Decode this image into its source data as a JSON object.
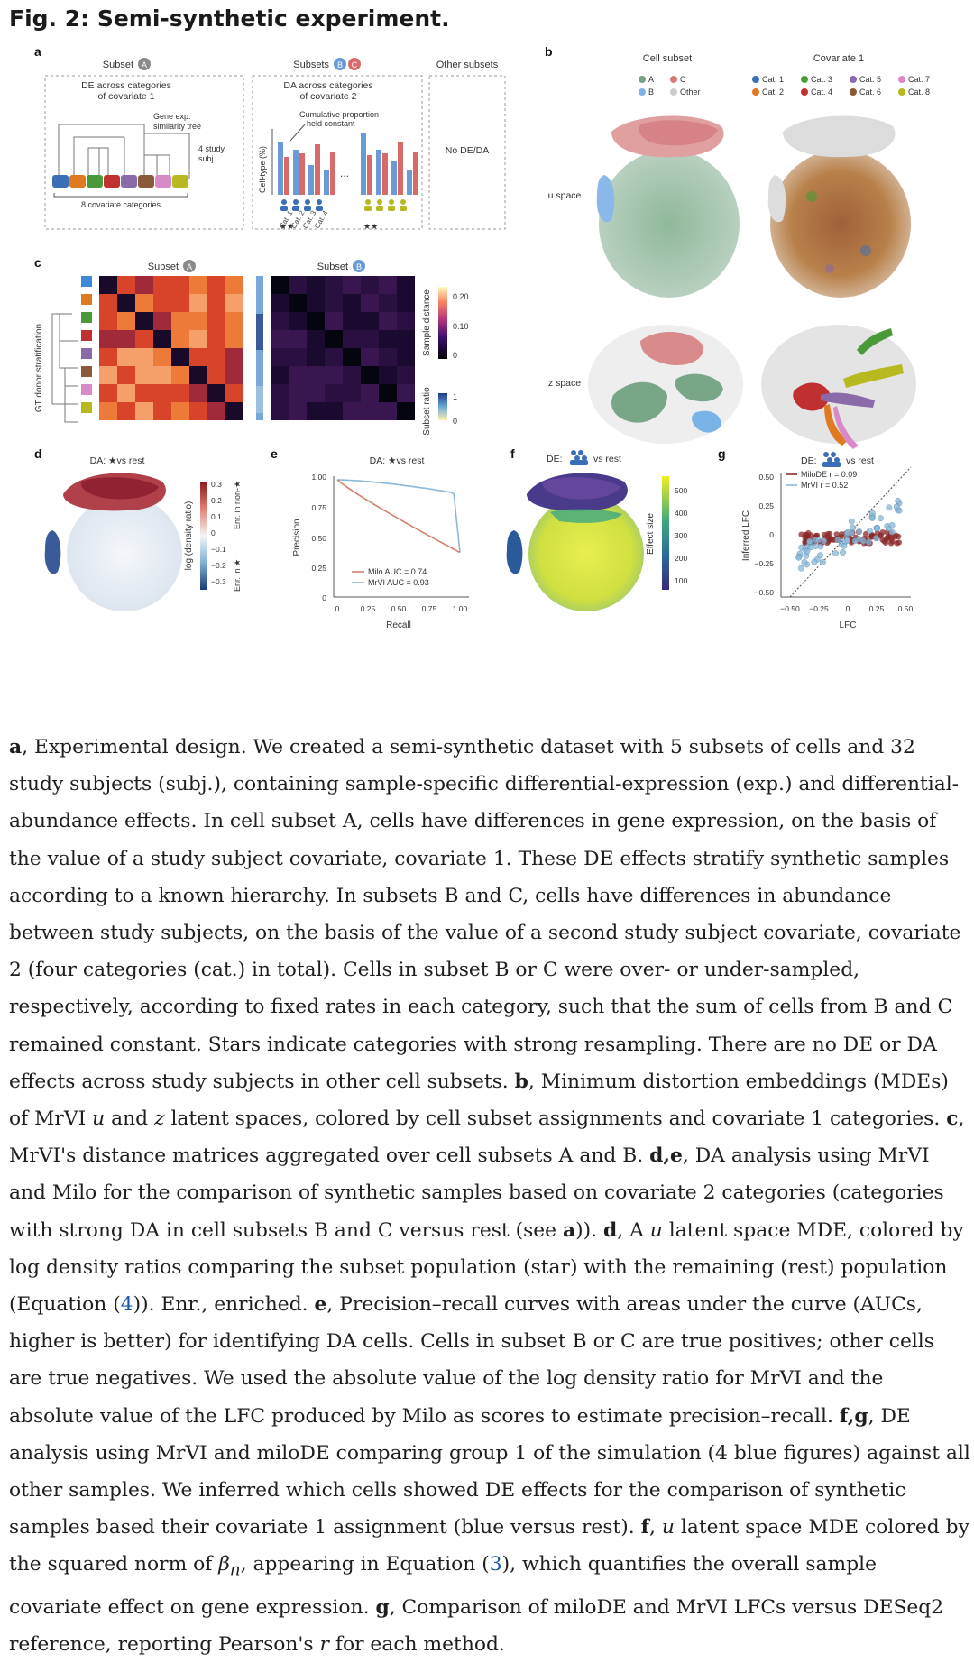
{
  "title": "Fig. 2: Semi-synthetic experiment.",
  "panel_a": {
    "letter": "a",
    "subset_a_label": "Subset",
    "subset_a_badge": "A",
    "de_title_1": "DE across categories",
    "de_title_2": "of covariate 1",
    "tree_label_1": "Gene exp.",
    "tree_label_2": "similarity tree",
    "study_label_1": "4 study",
    "study_label_2": "subj.",
    "covariate_label": "8 covariate categories",
    "subsets_bc_label": "Subsets",
    "badge_b": "B",
    "badge_c": "C",
    "da_title_1": "DA across categories",
    "da_title_2": "of covariate 2",
    "cumulative_1": "Cumulative proportion",
    "cumulative_2": "held constant",
    "ylabel": "Cell-type (%)",
    "ellipsis": "...",
    "cat_labels": [
      "Cat. 1",
      "Cat. 2",
      "Cat. 3",
      "Cat. 4"
    ],
    "stars": "★★",
    "other_subsets": "Other subsets",
    "no_de_da": "No DE/DA"
  },
  "panel_b": {
    "letter": "b",
    "cell_subset_title": "Cell subset",
    "covariate_title": "Covariate 1",
    "legend_subset": [
      {
        "label": "A",
        "color": "#7a9e87"
      },
      {
        "label": "C",
        "color": "#d9777a"
      },
      {
        "label": "B",
        "color": "#7ab3e8"
      },
      {
        "label": "Other",
        "color": "#cccccc"
      }
    ],
    "legend_cov": [
      {
        "label": "Cat. 1",
        "color": "#3a6fb8"
      },
      {
        "label": "Cat. 3",
        "color": "#4a9a3a"
      },
      {
        "label": "Cat. 5",
        "color": "#8a6aa8"
      },
      {
        "label": "Cat. 7",
        "color": "#d88ac8"
      },
      {
        "label": "Cat. 2",
        "color": "#e07a20"
      },
      {
        "label": "Cat. 4",
        "color": "#c03030"
      },
      {
        "label": "Cat. 6",
        "color": "#8a5a3a"
      },
      {
        "label": "Cat. 8",
        "color": "#b8b820"
      }
    ],
    "u_space": "u space",
    "z_space": "z space"
  },
  "panel_c": {
    "letter": "c",
    "subset_label": "Subset",
    "badge_a": "A",
    "badge_b": "B",
    "ylabel": "GT donor stratification",
    "cbar_title": "Sample distance",
    "cbar_ticks": [
      "0.20",
      "0.10",
      "0"
    ],
    "ratio_title": "Subset ratio",
    "ratio_ticks": [
      "1",
      "0"
    ]
  },
  "panel_d": {
    "letter": "d",
    "title": "DA: ★vs rest",
    "cbar_label": "log (density ratio)",
    "cbar_ticks": [
      "0.3",
      "0.2",
      "0.1",
      "0",
      "−0.1",
      "−0.2",
      "−0.3"
    ],
    "enr_top": "Enr. in non-★",
    "enr_bottom": "Enr. in ★"
  },
  "panel_e": {
    "letter": "e",
    "title": "DA: ★vs rest",
    "xlabel": "Recall",
    "ylabel": "Precision",
    "xticks": [
      "0",
      "0.25",
      "0.50",
      "0.75",
      "1.00"
    ],
    "yticks": [
      "1.00",
      "0.75",
      "0.50",
      "0.25",
      "0"
    ],
    "legend": [
      {
        "label": "Milo AUC = 0.74",
        "color": "#d0826e"
      },
      {
        "label": "MrVI AUC = 0.93",
        "color": "#8ab8d8"
      }
    ]
  },
  "panel_f": {
    "letter": "f",
    "title_prefix": "DE:",
    "title_suffix": "vs rest",
    "cbar_label": "Effect size",
    "cbar_ticks": [
      "500",
      "400",
      "300",
      "200",
      "100"
    ]
  },
  "panel_g": {
    "letter": "g",
    "title_prefix": "DE:",
    "title_suffix": "vs rest",
    "xlabel": "LFC",
    "ylabel": "Inferred LFC",
    "xticks": [
      "−0.50",
      "−0.25",
      "0",
      "0.25",
      "0.50"
    ],
    "yticks": [
      "0.50",
      "0.25",
      "0",
      "−0.25",
      "−0.50"
    ],
    "legend": [
      {
        "label": "MiloDE r = 0.09",
        "color": "#8b2a2a"
      },
      {
        "label": "MrVI r = 0.52",
        "color": "#8ab8d8"
      }
    ]
  },
  "caption": {
    "p_a1": "a",
    "t_a1": ", Experimental design. We created a semi-synthetic dataset with 5 subsets of cells and 32 study subjects (subj.), containing sample-specific differential-expression (exp.) and differential-abundance effects. In cell subset A, cells have differences in gene expression, on the basis of the value of a study subject covariate, covariate 1. These DE effects stratify synthetic samples according to a known hierarchy. In subsets B and C, cells have differences in abundance between study subjects, on the basis of the value of a second study subject covariate, covariate 2 (four categories (cat.) in total). Cells in subset B or C were over- or under-sampled, respectively, according to fixed rates in each category, such that the sum of cells from B and C remained constant. Stars indicate categories with strong resampling. There are no DE or DA effects across study subjects in other cell subsets. ",
    "p_b": "b",
    "t_b1": ", Minimum distortion embeddings (MDEs) of MrVI ",
    "t_b_u": "u",
    "t_b2": " and ",
    "t_b_z": "z",
    "t_b3": " latent spaces, colored by cell subset assignments and covariate 1 categories. ",
    "p_c": "c",
    "t_c": ", MrVI's distance matrices aggregated over cell subsets A and B. ",
    "p_de": "d,e",
    "t_de1": ", DA analysis using MrVI and Milo for the comparison of synthetic samples based on covariate 2 categories (categories with strong DA in cell subsets B and C versus rest (see ",
    "p_a2": "a",
    "t_de2": ")). ",
    "p_d": "d",
    "t_d1": ", A ",
    "t_d_u": "u",
    "t_d2": " latent space MDE, colored by log density ratios comparing the subset population (star) with the remaining (rest) population (Equation (",
    "eq4": "4",
    "t_d3": ")). Enr., enriched. ",
    "p_e": "e",
    "t_e": ", Precision–recall curves with areas under the curve (AUCs, higher is better) for identifying DA cells. Cells in subset B or C are true positives; other cells are true negatives. We used the absolute value of the log density ratio for MrVI and the absolute value of the LFC produced by Milo as scores to estimate precision–recall. ",
    "p_fg": "f,g",
    "t_fg": ", DE analysis using MrVI and miloDE comparing group 1 of the simulation (4 blue figures) against all other samples. We inferred which cells showed DE effects for the comparison of synthetic samples based their covariate 1 assignment (blue versus rest). ",
    "p_f": "f",
    "t_f1": ", ",
    "t_f_u": "u",
    "t_f2": " latent space MDE colored by the squared norm of ",
    "t_f_beta": "β",
    "t_f_n": "n",
    "t_f3": ", appearing in Equation (",
    "eq3": "3",
    "t_f4": "), which quantifies the overall sample covariate effect on gene expression. ",
    "p_g": "g",
    "t_g1": ", Comparison of miloDE and MrVI LFCs versus DESeq2 reference, reporting Pearson's ",
    "t_g_r": "r",
    "t_g2": " for each method."
  }
}
